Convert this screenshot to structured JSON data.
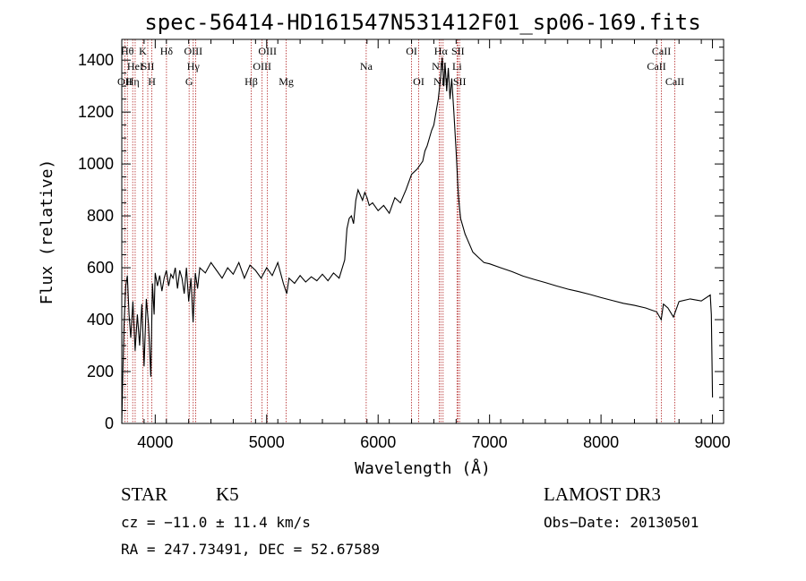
{
  "chart_data": {
    "type": "line",
    "title": "spec-56414-HD161547N531412F01_sp06-169.fits",
    "xlabel": "Wavelength (Å)",
    "ylabel": "Flux (relative)",
    "xlim": [
      3700,
      9100
    ],
    "ylim": [
      0,
      1480
    ],
    "xticks": [
      4000,
      5000,
      6000,
      7000,
      8000,
      9000
    ],
    "yticks": [
      0,
      200,
      400,
      600,
      800,
      1000,
      1200,
      1400
    ],
    "line_color": "#000000",
    "marker_color": "#b22222",
    "spectrum": {
      "name": "flux",
      "x": [
        3700,
        3710,
        3720,
        3735,
        3750,
        3765,
        3780,
        3800,
        3820,
        3840,
        3860,
        3880,
        3900,
        3920,
        3940,
        3960,
        3975,
        3990,
        4000,
        4020,
        4040,
        4060,
        4080,
        4100,
        4120,
        4140,
        4160,
        4180,
        4200,
        4220,
        4240,
        4260,
        4280,
        4300,
        4320,
        4340,
        4360,
        4380,
        4400,
        4450,
        4500,
        4550,
        4600,
        4650,
        4700,
        4750,
        4800,
        4850,
        4900,
        4950,
        5000,
        5050,
        5100,
        5150,
        5180,
        5200,
        5250,
        5300,
        5350,
        5400,
        5450,
        5500,
        5550,
        5600,
        5650,
        5700,
        5720,
        5740,
        5760,
        5780,
        5800,
        5820,
        5840,
        5860,
        5880,
        5900,
        5920,
        5950,
        6000,
        6050,
        6100,
        6150,
        6200,
        6250,
        6300,
        6350,
        6400,
        6420,
        6440,
        6460,
        6480,
        6500,
        6520,
        6540,
        6560,
        6575,
        6590,
        6600,
        6615,
        6630,
        6645,
        6660,
        6680,
        6700,
        6720,
        6740,
        6760,
        6780,
        6800,
        6850,
        6900,
        6950,
        7000,
        7100,
        7200,
        7300,
        7400,
        7500,
        7600,
        7700,
        7800,
        7900,
        8000,
        8100,
        8200,
        8300,
        8400,
        8500,
        8540,
        8560,
        8600,
        8650,
        8700,
        8800,
        8900,
        8980,
        8990,
        9000
      ],
      "y": [
        0,
        200,
        380,
        530,
        570,
        420,
        330,
        470,
        280,
        420,
        300,
        460,
        220,
        480,
        380,
        180,
        540,
        420,
        580,
        530,
        570,
        510,
        560,
        590,
        530,
        575,
        560,
        600,
        520,
        590,
        560,
        500,
        600,
        470,
        560,
        390,
        580,
        520,
        600,
        580,
        620,
        590,
        560,
        600,
        575,
        620,
        560,
        610,
        590,
        560,
        600,
        570,
        620,
        540,
        500,
        560,
        540,
        570,
        545,
        565,
        550,
        575,
        550,
        580,
        560,
        630,
        750,
        790,
        800,
        770,
        860,
        900,
        880,
        860,
        890,
        870,
        840,
        850,
        820,
        840,
        810,
        870,
        850,
        900,
        960,
        980,
        1010,
        1050,
        1070,
        1100,
        1130,
        1150,
        1200,
        1250,
        1330,
        1410,
        1300,
        1390,
        1280,
        1370,
        1250,
        1330,
        1200,
        1050,
        880,
        790,
        760,
        730,
        710,
        660,
        640,
        620,
        615,
        600,
        585,
        568,
        555,
        543,
        530,
        518,
        508,
        497,
        485,
        474,
        463,
        455,
        445,
        430,
        400,
        460,
        445,
        410,
        470,
        480,
        472,
        495,
        420,
        100
      ]
    },
    "spectral_lines": [
      {
        "x": 3727,
        "labels": [
          "OII"
        ],
        "rows": [
          2
        ]
      },
      {
        "x": 3750,
        "labels": [
          "Hθ"
        ],
        "rows": [
          0
        ]
      },
      {
        "x": 3798,
        "labels": [
          "Hη"
        ],
        "rows": [
          2
        ]
      },
      {
        "x": 3820,
        "labels": [
          "HeI"
        ],
        "rows": [
          1
        ]
      },
      {
        "x": 3889,
        "labels": [
          "K"
        ],
        "rows": [
          0
        ]
      },
      {
        "x": 3933,
        "labels": [
          "SII"
        ],
        "rows": [
          1
        ]
      },
      {
        "x": 3970,
        "labels": [
          "H"
        ],
        "rows": [
          2
        ]
      },
      {
        "x": 4101,
        "labels": [
          "Hδ"
        ],
        "rows": [
          0
        ]
      },
      {
        "x": 4304,
        "labels": [
          "G"
        ],
        "rows": [
          2
        ]
      },
      {
        "x": 4341,
        "labels": [
          "OIII",
          "Hγ"
        ],
        "rows": [
          0,
          1
        ]
      },
      {
        "x": 4363,
        "labels": [],
        "rows": []
      },
      {
        "x": 4861,
        "labels": [
          "Hβ"
        ],
        "rows": [
          2
        ]
      },
      {
        "x": 4959,
        "labels": [
          "OIII"
        ],
        "rows": [
          1
        ]
      },
      {
        "x": 5007,
        "labels": [
          "OIII"
        ],
        "rows": [
          0
        ]
      },
      {
        "x": 5175,
        "labels": [
          "Mg"
        ],
        "rows": [
          2
        ]
      },
      {
        "x": 5893,
        "labels": [
          "Na"
        ],
        "rows": [
          1
        ]
      },
      {
        "x": 6300,
        "labels": [
          "OI"
        ],
        "rows": [
          0
        ]
      },
      {
        "x": 6364,
        "labels": [
          "OI"
        ],
        "rows": [
          2
        ]
      },
      {
        "x": 6548,
        "labels": [
          "NII"
        ],
        "rows": [
          1
        ]
      },
      {
        "x": 6563,
        "labels": [
          "Hα",
          "NII"
        ],
        "rows": [
          0,
          2
        ]
      },
      {
        "x": 6583,
        "labels": [],
        "rows": []
      },
      {
        "x": 6708,
        "labels": [
          "Li"
        ],
        "rows": [
          1
        ]
      },
      {
        "x": 6716,
        "labels": [
          "SII"
        ],
        "rows": [
          0
        ]
      },
      {
        "x": 6731,
        "labels": [
          "SII"
        ],
        "rows": [
          2
        ]
      },
      {
        "x": 8498,
        "labels": [
          "CaII"
        ],
        "rows": [
          1
        ]
      },
      {
        "x": 8542,
        "labels": [
          "CaII"
        ],
        "rows": [
          0
        ]
      },
      {
        "x": 8662,
        "labels": [
          "CaII"
        ],
        "rows": [
          2
        ]
      }
    ]
  },
  "info": {
    "class": "STAR",
    "subclass": "K5",
    "survey": "LAMOST DR3",
    "cz": "cz = −11.0 ± 11.4 km/s",
    "obs_date": "Obs−Date: 20130501",
    "coords": "RA = 247.73491, DEC =  52.67589"
  }
}
